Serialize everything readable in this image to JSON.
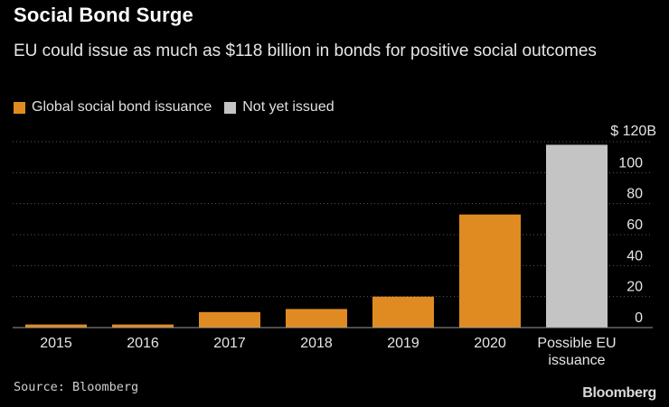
{
  "header": {
    "title": "Social Bond Surge",
    "subtitle": "EU could issue as much as $118 billion in bonds for positive social outcomes"
  },
  "legend": [
    {
      "label": "Global social bond issuance",
      "color": "#e08b22"
    },
    {
      "label": "Not yet issued",
      "color": "#c4c4c4"
    }
  ],
  "footer": {
    "source": "Source: Bloomberg",
    "brand": "Bloomberg"
  },
  "chart_data": {
    "type": "bar",
    "title": "Social Bond Surge",
    "categories": [
      "2015",
      "2016",
      "2017",
      "2018",
      "2019",
      "2020",
      "Possible EU issuance"
    ],
    "category_lines": [
      [
        "2015"
      ],
      [
        "2016"
      ],
      [
        "2017"
      ],
      [
        "2018"
      ],
      [
        "2019"
      ],
      [
        "2020"
      ],
      [
        "Possible EU",
        "issuance"
      ]
    ],
    "values": [
      2,
      2,
      10,
      12,
      20,
      73,
      118
    ],
    "series_of_bar": [
      "issued",
      "issued",
      "issued",
      "issued",
      "issued",
      "issued",
      "not_issued"
    ],
    "colors": {
      "issued": "#e08b22",
      "not_issued": "#c4c4c4"
    },
    "yticks": [
      0,
      20,
      40,
      60,
      80,
      100
    ],
    "ytick_labels": [
      "0",
      "20",
      "40",
      "60",
      "80",
      "100"
    ],
    "ytop_label": "$ 120B",
    "ylim": [
      0,
      120
    ],
    "yaxis_side": "right",
    "gridlines": true,
    "xlabel": "",
    "ylabel": ""
  }
}
